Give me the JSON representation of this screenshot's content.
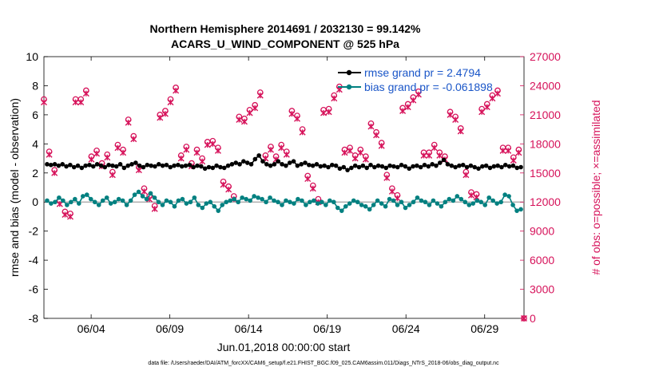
{
  "chart_data": {
    "type": "line",
    "title_line1": "Northern Hemisphere 2014691 / 2032130 = 99.142%",
    "title_line2": "ACARS_U_WIND_COMPONENT @ 525 hPa",
    "xlabel": "Jun.01,2018 00:00:00 start",
    "ylabel_left": "rmse and bias (model - observation)",
    "ylabel_right": "# of obs: o=possible; ×=assimilated",
    "x_ticks": [
      "06/04",
      "06/09",
      "06/14",
      "06/19",
      "06/24",
      "06/29"
    ],
    "x_tick_days": [
      3,
      8,
      13,
      18,
      23,
      28
    ],
    "xlim_days": [
      0,
      30.5
    ],
    "ylim_left": [
      -8,
      10
    ],
    "yticks_left": [
      "-8",
      "-6",
      "-4",
      "-2",
      "0",
      "2",
      "4",
      "6",
      "8",
      "10"
    ],
    "ylim_right": [
      0,
      27000
    ],
    "yticks_right": [
      "0",
      "3000",
      "6000",
      "9000",
      "12000",
      "15000",
      "18000",
      "21000",
      "24000",
      "27000"
    ],
    "legend": [
      {
        "name": "rmse grand pr = 2.4794",
        "color": "#000000"
      },
      {
        "name": "bias grand pr = -0.061898",
        "color": "#008080"
      }
    ],
    "colors": {
      "rmse": "#000000",
      "bias": "#008080",
      "obs": "#d6125a",
      "zero_line": "#b0b0b0"
    },
    "series": [
      {
        "name": "rmse",
        "values": [
          2.6,
          2.55,
          2.6,
          2.5,
          2.6,
          2.45,
          2.55,
          2.4,
          2.5,
          2.35,
          2.5,
          2.55,
          2.45,
          2.6,
          2.5,
          2.4,
          2.55,
          2.5,
          2.45,
          2.6,
          2.35,
          2.5,
          2.6,
          2.7,
          2.5,
          2.4,
          2.55,
          2.5,
          2.45,
          2.6,
          2.5,
          2.55,
          2.4,
          2.5,
          2.55,
          2.45,
          2.5,
          2.55,
          2.4,
          2.5,
          2.45,
          2.3,
          2.4,
          2.35,
          2.5,
          2.4,
          2.35,
          2.5,
          2.6,
          2.7,
          2.6,
          2.8,
          2.7,
          2.6,
          2.95,
          3.2,
          2.8,
          2.6,
          2.5,
          2.6,
          2.8,
          2.6,
          2.5,
          2.7,
          2.8,
          2.5,
          2.6,
          2.7,
          2.55,
          2.5,
          2.6,
          2.45,
          2.5,
          2.4,
          2.55,
          2.5,
          2.3,
          2.4,
          2.2,
          2.35,
          2.5,
          2.4,
          2.5,
          2.35,
          2.55,
          2.4,
          2.5,
          2.45,
          2.35,
          2.5,
          2.45,
          2.4,
          2.55,
          2.45,
          2.3,
          2.45,
          2.5,
          2.4,
          2.55,
          2.45,
          2.6,
          2.5,
          2.7,
          2.9,
          2.6,
          2.5,
          2.4,
          2.5,
          2.55,
          2.4,
          2.5,
          2.4,
          2.3,
          2.45,
          2.5,
          2.35,
          2.45,
          2.5,
          2.4,
          2.55,
          2.45,
          2.5,
          2.35,
          2.4
        ]
      },
      {
        "name": "bias",
        "values": [
          0.1,
          -0.1,
          0.0,
          0.3,
          0.1,
          -0.2,
          0.0,
          0.2,
          -0.1,
          0.4,
          0.5,
          0.2,
          0.0,
          -0.2,
          0.1,
          0.3,
          -0.1,
          0.0,
          0.2,
          0.1,
          -0.2,
          0.1,
          0.5,
          0.7,
          0.4,
          0.2,
          0.6,
          0.3,
          0.0,
          -0.2,
          0.1,
          0.0,
          -0.3,
          0.1,
          0.2,
          -0.1,
          0.0,
          0.3,
          -0.2,
          -0.4,
          -0.1,
          0.0,
          -0.3,
          -0.6,
          -0.2,
          0.0,
          0.1,
          0.2,
          0.0,
          0.3,
          0.2,
          0.1,
          0.4,
          0.3,
          0.2,
          0.0,
          0.3,
          0.1,
          0.0,
          -0.2,
          0.1,
          0.0,
          -0.1,
          0.2,
          0.1,
          -0.2,
          0.0,
          0.1,
          -0.1,
          0.0,
          -0.2,
          0.1,
          0.0,
          -0.4,
          -0.6,
          -0.3,
          -0.1,
          0.1,
          0.0,
          -0.2,
          -0.3,
          -0.5,
          -0.2,
          0.1,
          -0.1,
          -0.3,
          0.2,
          0.1,
          -0.2,
          0.0,
          -0.4,
          -0.2,
          0.0,
          0.3,
          0.1,
          0.0,
          -0.2,
          0.1,
          -0.1,
          -0.3,
          0.0,
          0.2,
          0.1,
          0.4,
          0.2,
          0.0,
          -0.2,
          -0.1,
          0.1,
          0.0,
          -0.2,
          0.3,
          0.1,
          -0.1,
          0.0,
          0.5,
          0.4,
          -0.2,
          -0.6,
          -0.5
        ]
      },
      {
        "name": "obs_possible",
        "values": [
          22600,
          17200,
          15300,
          12100,
          11000,
          10800,
          22600,
          22600,
          23500,
          16700,
          17300,
          16000,
          16900,
          15100,
          17900,
          17400,
          20500,
          18800,
          15600,
          13400,
          12600,
          11600,
          21000,
          21400,
          22600,
          23800,
          16800,
          17700,
          16000,
          17400,
          16500,
          18200,
          18300,
          17600,
          14100,
          13600,
          12600,
          20800,
          20600,
          21500,
          22000,
          23300,
          16800,
          17700,
          16700,
          17900,
          17200,
          21400,
          20900,
          19500,
          14700,
          13700,
          12300,
          21500,
          21600,
          23000,
          23900,
          17400,
          17600,
          16800,
          17400,
          16700,
          20100,
          19200,
          18100,
          14800,
          13400,
          12700,
          21700,
          22100,
          22800,
          23400,
          17100,
          17100,
          17900,
          17100,
          16700,
          21300,
          20800,
          19600,
          15100,
          13000,
          12800,
          21600,
          22100,
          23000,
          23500,
          17600,
          17600,
          16600,
          17400,
          0
        ]
      },
      {
        "name": "obs_assimilated",
        "values": [
          22300,
          16900,
          15000,
          11800,
          10700,
          10500,
          22300,
          22300,
          23200,
          16400,
          17000,
          15700,
          16600,
          14800,
          17600,
          17100,
          20200,
          18500,
          15300,
          13100,
          12300,
          11300,
          20700,
          21100,
          22300,
          23500,
          16500,
          17400,
          15700,
          17100,
          16200,
          17900,
          18000,
          17300,
          13800,
          13300,
          12300,
          20500,
          20300,
          21200,
          21700,
          23000,
          16500,
          17400,
          16400,
          17600,
          16900,
          21100,
          20600,
          19200,
          14400,
          13400,
          12000,
          21200,
          21300,
          22700,
          23600,
          17100,
          17300,
          16500,
          17100,
          16400,
          19800,
          18900,
          17800,
          14500,
          13100,
          12400,
          21400,
          21800,
          22500,
          23100,
          16800,
          16800,
          17600,
          16800,
          16400,
          21000,
          20500,
          19300,
          14800,
          12700,
          12500,
          21300,
          21800,
          22700,
          23200,
          17300,
          17300,
          16300,
          17100,
          0
        ]
      }
    ]
  },
  "footnote": "data file: /Users/raeder/DAI/ATM_forcXX/CAM6_setup/f.e21.FHIST_BGC.f09_025.CAM6assim.011/Diags_NTrS_2018-06/obs_diag_output.nc"
}
